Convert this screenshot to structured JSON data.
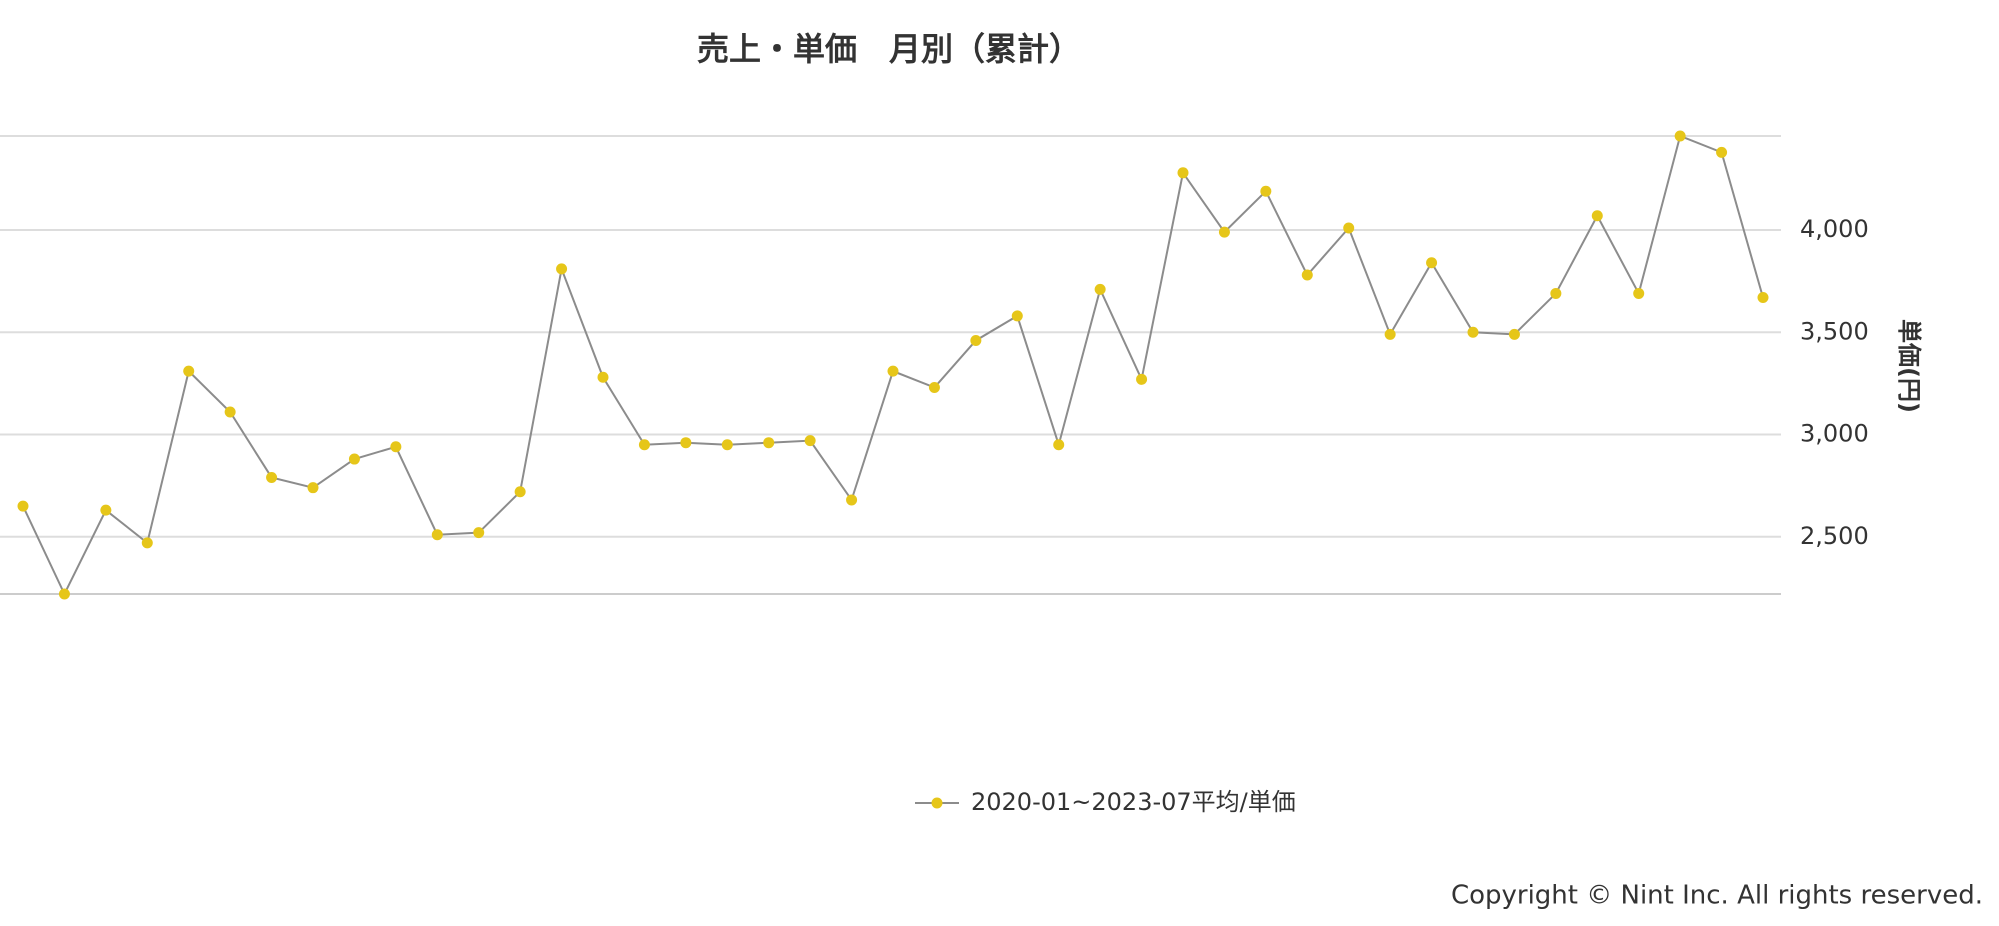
{
  "chart_data": {
    "type": "line",
    "title": "売上・単価　月別（累計）",
    "y_axis_label": "単価(円)",
    "series": [
      {
        "name": "2020-01~2023-07平均/単価",
        "color": "#e6c619",
        "line_color": "#8c8c8c",
        "values": [
          2650,
          2220,
          2630,
          2470,
          3310,
          3110,
          2790,
          2740,
          2880,
          2940,
          2510,
          2520,
          2720,
          3810,
          3280,
          2950,
          2960,
          2950,
          2960,
          2970,
          2680,
          3310,
          3230,
          3460,
          3580,
          2950,
          3710,
          3270,
          4280,
          3990,
          4190,
          3780,
          4010,
          3490,
          3840,
          3500,
          3490,
          3690,
          4070,
          3690,
          4460,
          4380,
          3670
        ]
      }
    ],
    "ylim": [
      2220,
      4460
    ],
    "yticks": [
      {
        "value": 2500,
        "label": "2,500"
      },
      {
        "value": 3000,
        "label": "3,000"
      },
      {
        "value": 3500,
        "label": "3,500"
      },
      {
        "value": 4000,
        "label": "4,000"
      }
    ],
    "grid": true,
    "legend": "bottom",
    "footer": "Copyright © Nint Inc. All rights reserved."
  }
}
